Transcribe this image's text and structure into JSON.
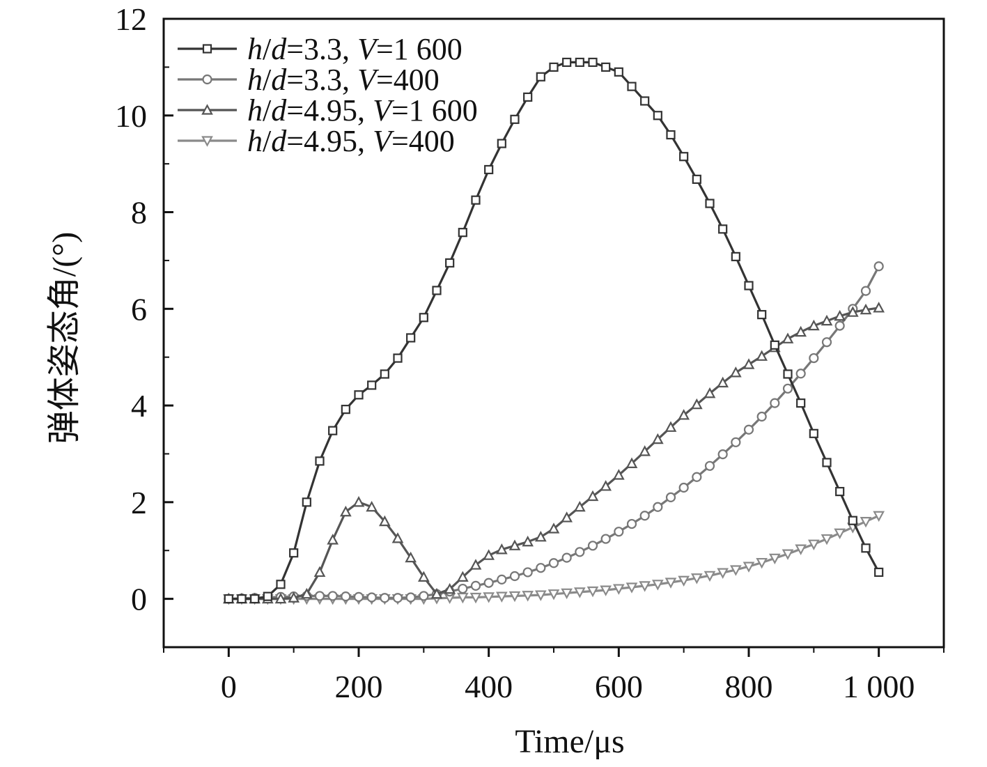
{
  "chart_data": {
    "type": "line",
    "xlabel": "Time/μs",
    "ylabel": "弹体姿态角/(°)",
    "xlim": [
      -100,
      1100
    ],
    "ylim": [
      -1,
      12
    ],
    "x_ticks": [
      0,
      200,
      400,
      600,
      800,
      1000
    ],
    "x_tick_labels": [
      "0",
      "200",
      "400",
      "600",
      "800",
      "1 000"
    ],
    "y_ticks": [
      0,
      2,
      4,
      6,
      8,
      10,
      12
    ],
    "y_tick_labels": [
      "0",
      "2",
      "4",
      "6",
      "8",
      "10",
      "12"
    ],
    "grid": false,
    "legend_position": "top-left",
    "x": [
      0,
      20,
      40,
      60,
      80,
      100,
      120,
      140,
      160,
      180,
      200,
      220,
      240,
      260,
      280,
      300,
      320,
      340,
      360,
      380,
      400,
      420,
      440,
      460,
      480,
      500,
      520,
      540,
      560,
      580,
      600,
      620,
      640,
      660,
      680,
      700,
      720,
      740,
      760,
      780,
      800,
      820,
      840,
      860,
      880,
      900,
      920,
      940,
      960,
      980,
      1000
    ],
    "series": [
      {
        "name": "h/d=3.3, V=1 600",
        "marker": "square",
        "color": "#333333",
        "values": [
          0,
          0,
          0,
          0.05,
          0.3,
          0.95,
          2.0,
          2.85,
          3.48,
          3.92,
          4.22,
          4.42,
          4.65,
          4.98,
          5.4,
          5.82,
          6.38,
          6.95,
          7.58,
          8.25,
          8.88,
          9.42,
          9.92,
          10.38,
          10.8,
          11.0,
          11.1,
          11.1,
          11.1,
          11.0,
          10.9,
          10.6,
          10.3,
          10.0,
          9.6,
          9.15,
          8.68,
          8.18,
          7.65,
          7.08,
          6.48,
          5.88,
          5.25,
          4.65,
          4.05,
          3.42,
          2.82,
          2.22,
          1.62,
          1.05,
          0.55
        ]
      },
      {
        "name": "h/d=3.3, V=400",
        "marker": "circle",
        "color": "#777777",
        "values": [
          0,
          0.01,
          0.02,
          0.03,
          0.04,
          0.05,
          0.06,
          0.06,
          0.06,
          0.05,
          0.04,
          0.03,
          0.02,
          0.02,
          0.03,
          0.06,
          0.1,
          0.15,
          0.21,
          0.27,
          0.33,
          0.4,
          0.47,
          0.55,
          0.64,
          0.74,
          0.85,
          0.97,
          1.1,
          1.24,
          1.39,
          1.55,
          1.72,
          1.9,
          2.1,
          2.3,
          2.52,
          2.75,
          2.99,
          3.24,
          3.5,
          3.77,
          4.05,
          4.35,
          4.66,
          4.98,
          5.31,
          5.65,
          6.0,
          6.37,
          6.88
        ]
      },
      {
        "name": "h/d=4.95, V=1 600",
        "marker": "triangle-up",
        "color": "#555555",
        "values": [
          0,
          0,
          0,
          0,
          0,
          0.02,
          0.1,
          0.55,
          1.22,
          1.8,
          2.0,
          1.9,
          1.6,
          1.25,
          0.85,
          0.45,
          0.1,
          0.2,
          0.45,
          0.7,
          0.9,
          1.02,
          1.1,
          1.18,
          1.28,
          1.45,
          1.68,
          1.9,
          2.12,
          2.33,
          2.56,
          2.8,
          3.05,
          3.3,
          3.55,
          3.8,
          4.02,
          4.25,
          4.47,
          4.68,
          4.85,
          5.02,
          5.2,
          5.38,
          5.52,
          5.65,
          5.75,
          5.85,
          5.93,
          5.98,
          6.02
        ]
      },
      {
        "name": "h/d=4.95, V=400",
        "marker": "triangle-down",
        "color": "#8a8a8a",
        "values": [
          0,
          0,
          0,
          0,
          0,
          0,
          0,
          0,
          0,
          0,
          0,
          0,
          0,
          0,
          0,
          0,
          0.01,
          0.02,
          0.03,
          0.03,
          0.04,
          0.05,
          0.06,
          0.07,
          0.08,
          0.1,
          0.12,
          0.14,
          0.16,
          0.18,
          0.21,
          0.24,
          0.27,
          0.3,
          0.34,
          0.38,
          0.43,
          0.48,
          0.54,
          0.6,
          0.67,
          0.75,
          0.84,
          0.93,
          1.03,
          1.13,
          1.24,
          1.36,
          1.48,
          1.6,
          1.72
        ]
      }
    ]
  }
}
